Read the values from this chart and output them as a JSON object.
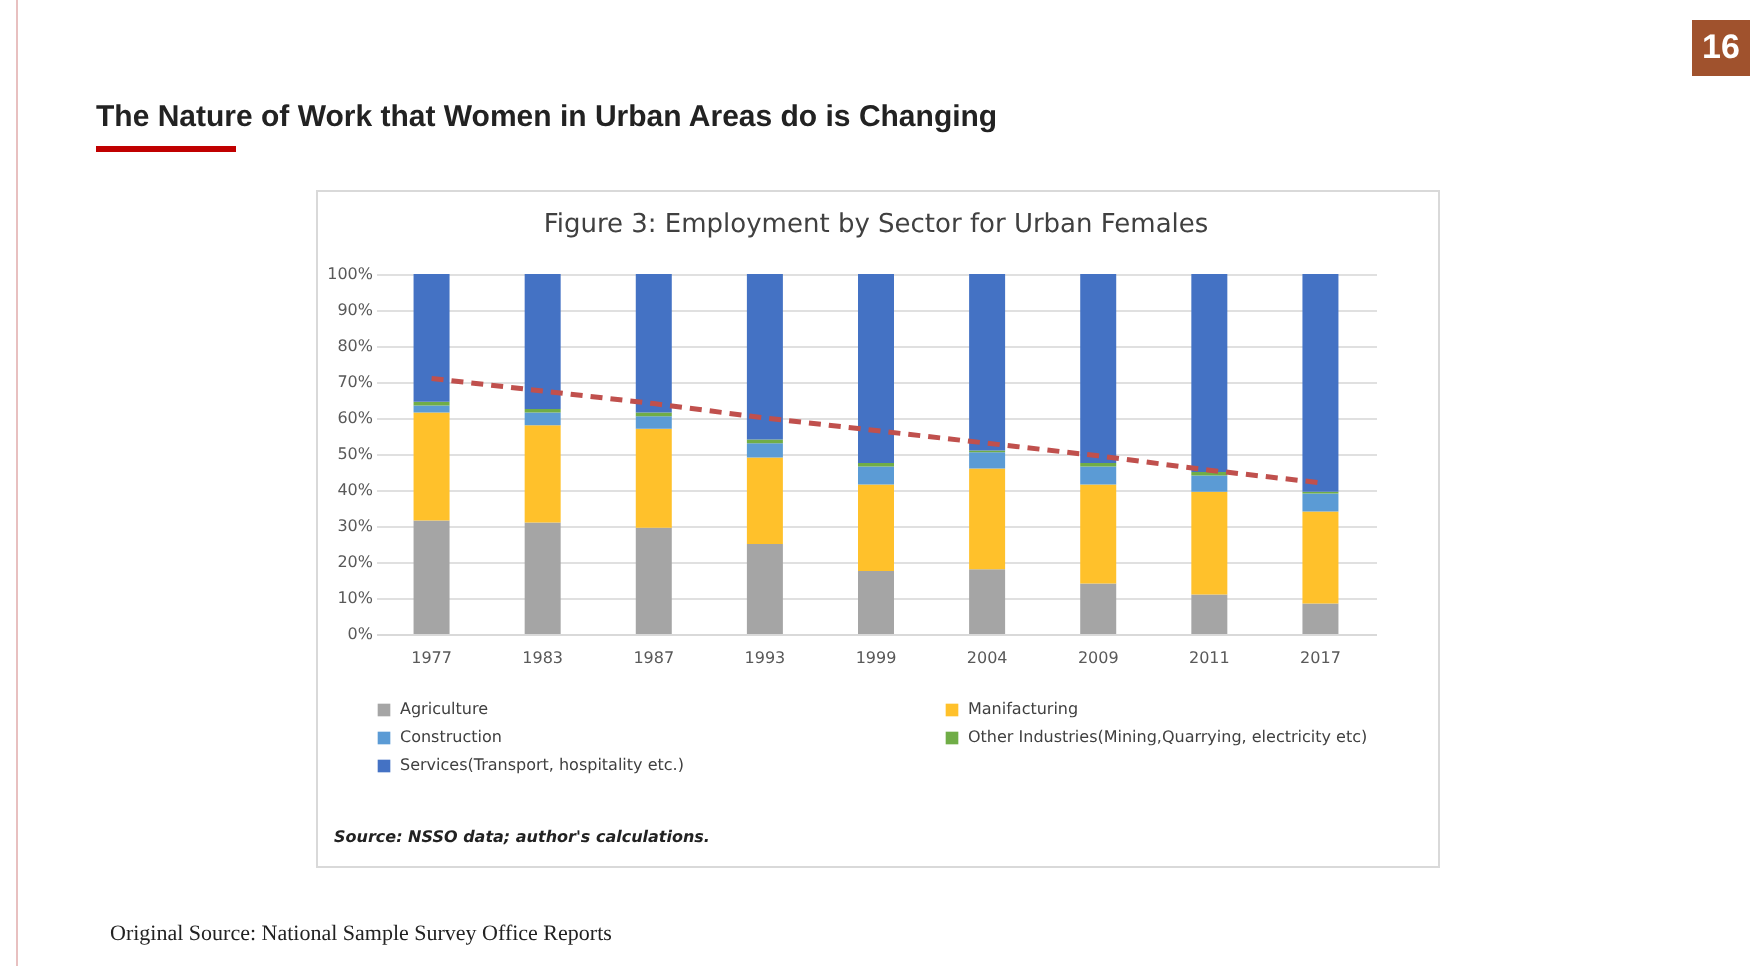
{
  "chart_data": {
    "type": "bar",
    "title": "The Nature of Work that Women in Urban Areas do is Changing",
    "subtitle": "Figure 3: Employment by Sector for Urban Females",
    "categories": [
      "1977",
      "1983",
      "1987",
      "1993",
      "1999",
      "2004",
      "2009",
      "2011",
      "2017"
    ],
    "stacked": true,
    "series": [
      {
        "name": "Agriculture",
        "color": "#a5a5a5",
        "values": [
          31.5,
          31,
          29.5,
          25,
          17.5,
          18,
          14,
          11,
          8.5
        ]
      },
      {
        "name": "Manifacturing",
        "color": "#ffc12b",
        "values": [
          30,
          27,
          27.5,
          24,
          24,
          28,
          27.5,
          28.5,
          25.5
        ]
      },
      {
        "name": "Construction",
        "color": "#5b9bd5",
        "values": [
          2,
          3.5,
          3.5,
          4,
          5,
          4.5,
          5,
          4.5,
          5
        ]
      },
      {
        "name": "Other Industries(Mining,Quarrying, electricity etc)",
        "color": "#70ad47",
        "values": [
          1,
          1,
          1,
          1,
          1,
          0.5,
          1,
          1,
          0.5
        ]
      },
      {
        "name": "Services(Transport, hospitality etc.)",
        "color": "#4472c4",
        "values": [
          35.5,
          37.5,
          38.5,
          46,
          52.5,
          49,
          52.5,
          55,
          60.5
        ]
      },
      {
        "type": "line",
        "color": "#c0504d",
        "line_style": "dashed",
        "values": [
          71,
          67.5,
          64,
          60,
          56.5,
          53,
          49.5,
          45.5,
          42
        ]
      }
    ],
    "ylim": [
      0,
      100
    ],
    "yticks": [
      {
        "value": 0,
        "label": "0%"
      },
      {
        "value": 10,
        "label": "10%"
      },
      {
        "value": 20,
        "label": "20%"
      },
      {
        "value": 30,
        "label": "30%"
      },
      {
        "value": 40,
        "label": "40%"
      },
      {
        "value": 50,
        "label": "50%"
      },
      {
        "value": 60,
        "label": "60%"
      },
      {
        "value": 70,
        "label": "70%"
      },
      {
        "value": 80,
        "label": "80%"
      },
      {
        "value": 90,
        "label": "90%"
      },
      {
        "value": 100,
        "label": "100%"
      }
    ],
    "grid": "y",
    "legend": "bottom",
    "annotations": [
      "Source: NSSO data; author's calculations.",
      "Original Source: National Sample Survey Office Reports",
      "16"
    ]
  }
}
